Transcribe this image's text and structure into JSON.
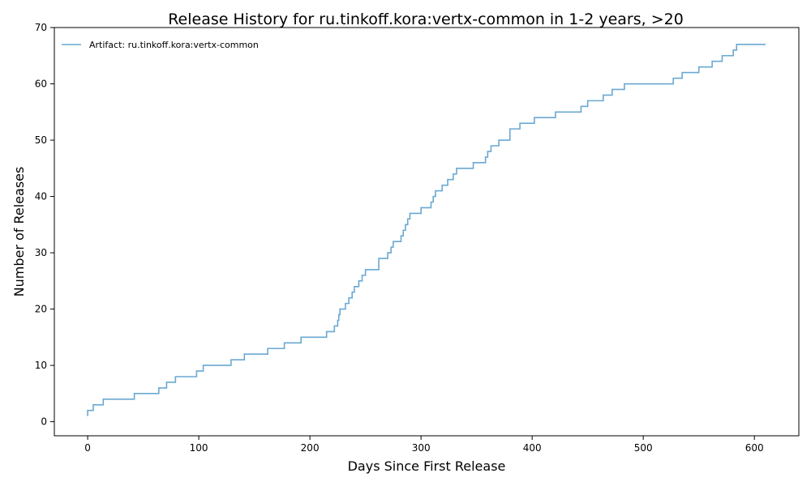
{
  "chart_data": {
    "type": "line",
    "step": "post",
    "title": "Release History for ru.tinkoff.kora:vertx-common in 1-2 years, >20",
    "xlabel": "Days Since First Release",
    "ylabel": "Number of Releases",
    "xlim": [
      -30,
      640
    ],
    "ylim": [
      -2.5,
      70
    ],
    "xticks": [
      0,
      100,
      200,
      300,
      400,
      500,
      600
    ],
    "yticks": [
      0,
      10,
      20,
      30,
      40,
      50,
      60,
      70
    ],
    "grid": false,
    "legend": "top-left",
    "series": [
      {
        "name": "Artifact: ru.tinkoff.kora:vertx-common",
        "color": "#6aa8d2",
        "x": [
          0,
          0,
          5,
          14,
          42,
          64,
          71,
          79,
          98,
          104,
          129,
          141,
          162,
          177,
          192,
          215,
          222,
          225,
          226,
          227,
          229,
          232,
          235,
          238,
          240,
          244,
          247,
          250,
          256,
          262,
          270,
          273,
          275,
          278,
          282,
          284,
          286,
          288,
          290,
          300,
          309,
          311,
          313,
          319,
          324,
          329,
          332,
          347,
          358,
          360,
          363,
          366,
          370,
          380,
          389,
          402,
          421,
          444,
          450,
          464,
          472,
          483,
          527,
          535,
          550,
          562,
          571,
          581,
          584,
          610
        ],
        "y": [
          1,
          2,
          3,
          4,
          5,
          6,
          7,
          8,
          9,
          10,
          11,
          12,
          13,
          14,
          15,
          16,
          17,
          18,
          19,
          20,
          20,
          21,
          22,
          23,
          24,
          25,
          26,
          27,
          27,
          29,
          30,
          31,
          32,
          32,
          33,
          34,
          35,
          36,
          37,
          38,
          39,
          40,
          41,
          42,
          43,
          44,
          45,
          46,
          47,
          48,
          49,
          49,
          50,
          52,
          53,
          54,
          55,
          56,
          57,
          58,
          59,
          60,
          61,
          62,
          63,
          64,
          65,
          66,
          67,
          67
        ]
      }
    ]
  }
}
